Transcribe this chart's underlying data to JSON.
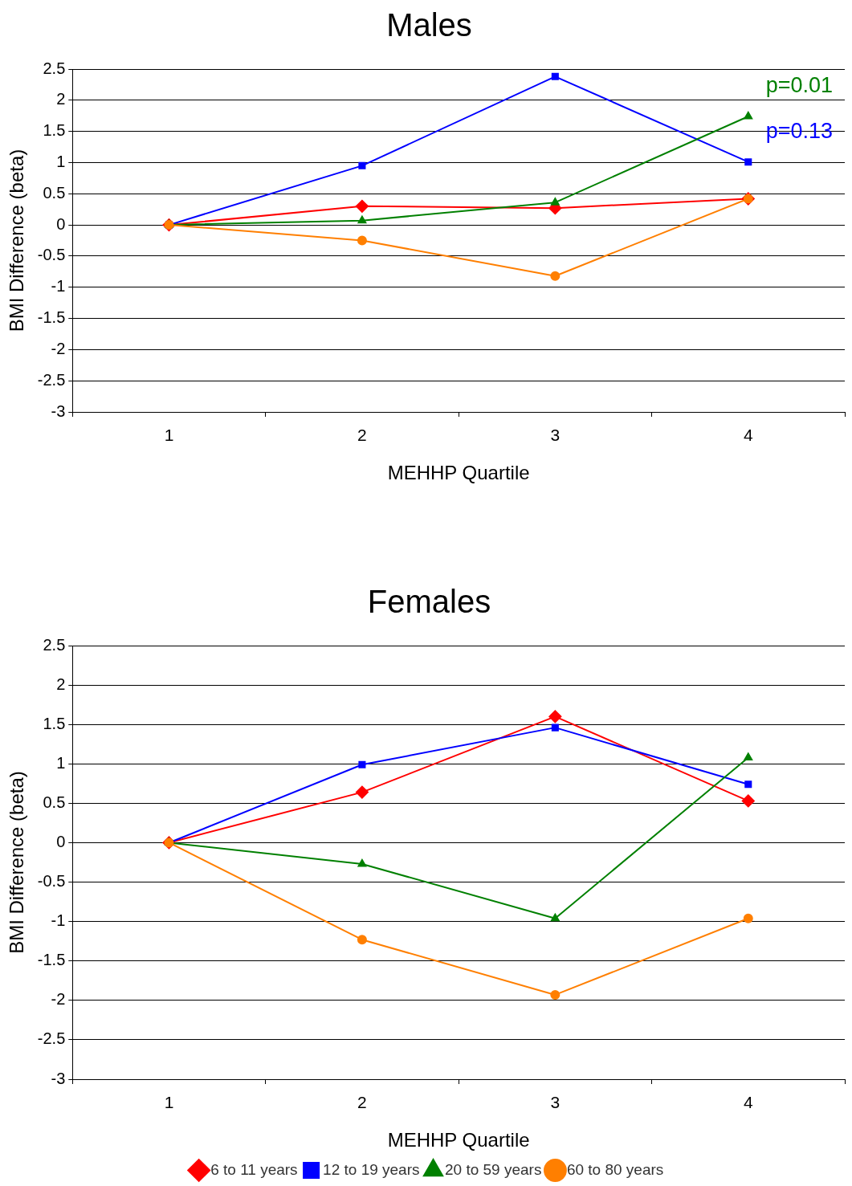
{
  "chart_data": [
    {
      "type": "line",
      "title": "Males",
      "xlabel": "MEHHP Quartile",
      "ylabel": "BMI Difference (beta)",
      "categories": [
        "1",
        "2",
        "3",
        "4"
      ],
      "ylim": [
        -3,
        2.5
      ],
      "yticks": [
        -3,
        -2.5,
        -2,
        -1.5,
        -1,
        -0.5,
        0,
        0.5,
        1,
        1.5,
        2,
        2.5
      ],
      "grid": "y",
      "legend": false,
      "series": [
        {
          "color": "#ff0000",
          "marker": "diamond",
          "values": [
            0,
            0.3,
            0.27,
            0.42
          ]
        },
        {
          "color": "#0000ff",
          "marker": "square",
          "values": [
            0,
            0.95,
            2.38,
            1.01
          ]
        },
        {
          "color": "#008000",
          "marker": "triangle",
          "values": [
            0,
            0.07,
            0.36,
            1.74
          ]
        },
        {
          "color": "#ff7f00",
          "marker": "circle",
          "values": [
            0,
            -0.25,
            -0.82,
            0.42
          ]
        }
      ],
      "annotations": [
        {
          "text": "p=0.01",
          "x": "4",
          "y": 1.74
        },
        {
          "text": "p=0.13",
          "x": "4",
          "y": 1.01
        }
      ]
    },
    {
      "type": "line",
      "title": "Females",
      "xlabel": "MEHHP Quartile",
      "ylabel": "BMI Difference (beta)",
      "categories": [
        "1",
        "2",
        "3",
        "4"
      ],
      "ylim": [
        -3,
        2.5
      ],
      "yticks": [
        -3,
        -2.5,
        -2,
        -1.5,
        -1,
        -0.5,
        0,
        0.5,
        1,
        1.5,
        2,
        2.5
      ],
      "grid": "y",
      "legend": "bottom",
      "series": [
        {
          "name": "6 to 11 years",
          "color": "#ff0000",
          "marker": "diamond",
          "values": [
            0,
            0.64,
            1.6,
            0.53
          ]
        },
        {
          "name": "12 to 19 years",
          "color": "#0000ff",
          "marker": "square",
          "values": [
            0,
            0.99,
            1.46,
            0.74
          ]
        },
        {
          "name": "20 to 59 years",
          "color": "#008000",
          "marker": "triangle",
          "values": [
            0,
            -0.27,
            -0.96,
            1.08
          ]
        },
        {
          "name": "60 to 80 years",
          "color": "#ff7f00",
          "marker": "circle",
          "values": [
            0,
            -1.23,
            -1.93,
            -0.96
          ]
        }
      ]
    }
  ]
}
